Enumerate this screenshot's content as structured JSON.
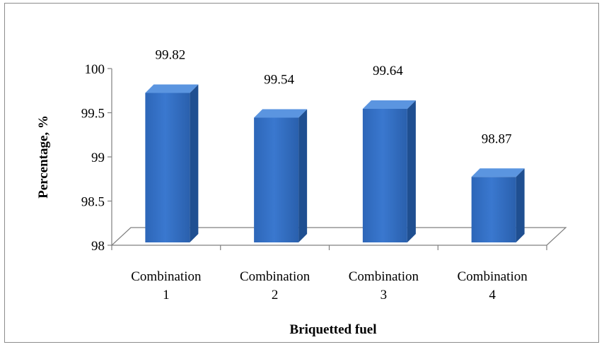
{
  "chart_data": {
    "type": "bar",
    "categories": [
      [
        "Combination",
        "1"
      ],
      [
        "Combination",
        "2"
      ],
      [
        "Combination",
        "3"
      ],
      [
        "Combination",
        "4"
      ]
    ],
    "values": [
      99.82,
      99.54,
      99.64,
      98.87
    ],
    "data_labels": [
      "99.82",
      "99.54",
      "99.64",
      "98.87"
    ],
    "xlabel": "Briquetted fuel",
    "ylabel": "Percentage, %",
    "ylim": [
      98,
      100
    ],
    "yticks": [
      "98",
      "98.5",
      "99",
      "99.5",
      "100"
    ],
    "grid": false,
    "style": "3d-column",
    "colors": {
      "bar_front": "#3a78cf",
      "bar_side": "#1f4f91",
      "bar_top": "#5b95e0",
      "floor": "#ffffff",
      "axis": "#808080"
    }
  }
}
